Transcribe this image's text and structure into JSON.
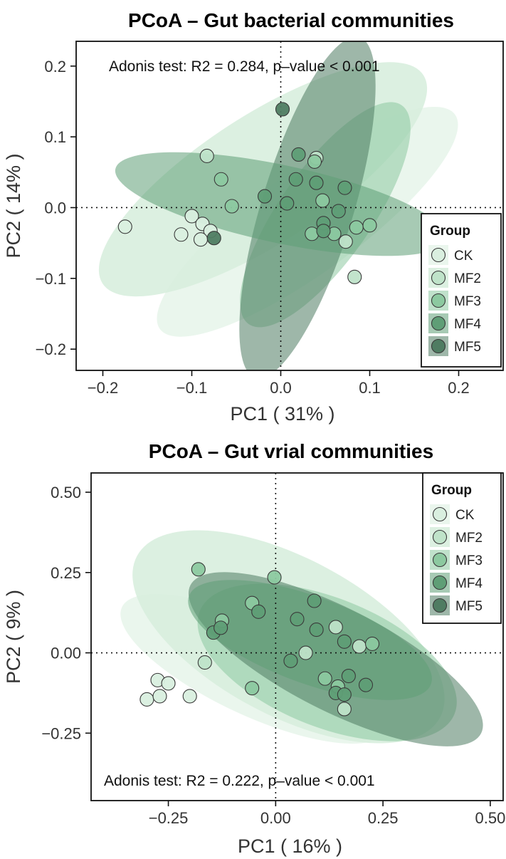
{
  "colors": {
    "CK": "#d9efdf",
    "MF2": "#bfe3c9",
    "MF3": "#8cc9a0",
    "MF4": "#5f9e76",
    "MF5": "#4f7c62",
    "point_stroke": "#3a3a3a"
  },
  "chart_data": [
    {
      "type": "scatter",
      "title": "PCoA – Gut bacterial communities",
      "xlabel": "PC1 ( 31% )",
      "ylabel": "PC2 ( 14% )",
      "xlim": [
        -0.23,
        0.25
      ],
      "ylim": [
        -0.23,
        0.235
      ],
      "xticks": [
        -0.2,
        -0.1,
        0.0,
        0.1,
        0.2
      ],
      "xtick_labels": [
        "−0.2",
        "−0.1",
        "0.0",
        "0.1",
        "0.2"
      ],
      "yticks": [
        0.2,
        0.1,
        0.0,
        -0.1,
        -0.2
      ],
      "ytick_labels": [
        "0.2",
        "0.1",
        "0.0",
        "−0.1",
        "−0.2"
      ],
      "annotation": "Adonis test: R2 = 0.284, p–value < 0.001",
      "annotation_position": "top",
      "legend_title": "Group",
      "legend_position": "bottom-right",
      "groups": [
        "CK",
        "MF2",
        "MF3",
        "MF4",
        "MF5"
      ],
      "ellipses": [
        {
          "group": "MF2",
          "cx": -0.02,
          "cy": 0.04,
          "rx": 0.215,
          "ry": 0.09,
          "angle_deg": 33
        },
        {
          "group": "CK",
          "cx": 0.03,
          "cy": -0.02,
          "rx": 0.205,
          "ry": 0.072,
          "angle_deg": 36
        },
        {
          "group": "MF3",
          "cx": 0.05,
          "cy": -0.01,
          "rx": 0.15,
          "ry": 0.065,
          "angle_deg": 55
        },
        {
          "group": "MF5",
          "cx": 0.03,
          "cy": 0.0,
          "rx": 0.2,
          "ry": 0.065,
          "angle_deg": 73
        },
        {
          "group": "MF4",
          "cx": 0.0,
          "cy": 0.005,
          "rx": 0.19,
          "ry": 0.055,
          "angle_deg": -12
        }
      ],
      "points": [
        {
          "group": "CK",
          "x": -0.175,
          "y": -0.027
        },
        {
          "group": "CK",
          "x": -0.1,
          "y": -0.012
        },
        {
          "group": "CK",
          "x": -0.088,
          "y": -0.023
        },
        {
          "group": "CK",
          "x": -0.079,
          "y": -0.033
        },
        {
          "group": "CK",
          "x": -0.112,
          "y": -0.038
        },
        {
          "group": "CK",
          "x": -0.09,
          "y": -0.045
        },
        {
          "group": "MF2",
          "x": -0.083,
          "y": 0.073
        },
        {
          "group": "MF2",
          "x": 0.083,
          "y": -0.098
        },
        {
          "group": "MF2",
          "x": 0.073,
          "y": -0.048
        },
        {
          "group": "MF2",
          "x": 0.04,
          "y": 0.07
        },
        {
          "group": "MF3",
          "x": -0.067,
          "y": 0.04
        },
        {
          "group": "MF3",
          "x": -0.055,
          "y": 0.002
        },
        {
          "group": "MF3",
          "x": 0.047,
          "y": 0.01
        },
        {
          "group": "MF3",
          "x": 0.085,
          "y": -0.028
        },
        {
          "group": "MF3",
          "x": 0.1,
          "y": -0.025
        },
        {
          "group": "MF3",
          "x": 0.035,
          "y": -0.037
        },
        {
          "group": "MF3",
          "x": 0.06,
          "y": -0.037
        },
        {
          "group": "MF3",
          "x": 0.038,
          "y": 0.065
        },
        {
          "group": "MF4",
          "x": 0.02,
          "y": 0.075
        },
        {
          "group": "MF4",
          "x": 0.017,
          "y": 0.04
        },
        {
          "group": "MF4",
          "x": 0.04,
          "y": 0.035
        },
        {
          "group": "MF4",
          "x": 0.072,
          "y": 0.028
        },
        {
          "group": "MF4",
          "x": -0.018,
          "y": 0.016
        },
        {
          "group": "MF4",
          "x": 0.007,
          "y": 0.006
        },
        {
          "group": "MF4",
          "x": 0.065,
          "y": -0.005
        },
        {
          "group": "MF4",
          "x": 0.048,
          "y": -0.022
        },
        {
          "group": "MF4",
          "x": 0.048,
          "y": -0.033
        },
        {
          "group": "MF5",
          "x": 0.002,
          "y": 0.139
        },
        {
          "group": "MF5",
          "x": -0.075,
          "y": -0.043
        }
      ]
    },
    {
      "type": "scatter",
      "title": "PCoA – Gut vrial communities",
      "xlabel": "PC1 ( 16% )",
      "ylabel": "PC2 ( 9% )",
      "xlim": [
        -0.43,
        0.53
      ],
      "ylim": [
        -0.46,
        0.56
      ],
      "xticks": [
        -0.25,
        0.0,
        0.25,
        0.5
      ],
      "xtick_labels": [
        "−0.25",
        "0.00",
        "0.25",
        "0.50"
      ],
      "yticks": [
        0.5,
        0.25,
        0.0,
        -0.25
      ],
      "ytick_labels": [
        "0.50",
        "0.25",
        "0.00",
        "−0.25"
      ],
      "annotation": "Adonis test: R2 = 0.222, p–value < 0.001",
      "annotation_position": "bottom",
      "legend_title": "Group",
      "legend_position": "top-right",
      "groups": [
        "CK",
        "MF2",
        "MF3",
        "MF4",
        "MF5"
      ],
      "ellipses": [
        {
          "group": "MF2",
          "cx": 0.03,
          "cy": 0.05,
          "rx": 0.4,
          "ry": 0.245,
          "angle_deg": -28
        },
        {
          "group": "CK",
          "cx": -0.05,
          "cy": -0.05,
          "rx": 0.34,
          "ry": 0.145,
          "angle_deg": -25
        },
        {
          "group": "MF3",
          "cx": 0.12,
          "cy": -0.03,
          "rx": 0.32,
          "ry": 0.2,
          "angle_deg": -22
        },
        {
          "group": "MF5",
          "cx": 0.14,
          "cy": -0.02,
          "rx": 0.38,
          "ry": 0.16,
          "angle_deg": -27
        },
        {
          "group": "MF4",
          "cx": 0.08,
          "cy": 0.04,
          "rx": 0.3,
          "ry": 0.135,
          "angle_deg": -20
        }
      ],
      "points": [
        {
          "group": "CK",
          "x": -0.275,
          "y": -0.085
        },
        {
          "group": "CK",
          "x": -0.25,
          "y": -0.095
        },
        {
          "group": "CK",
          "x": -0.3,
          "y": -0.145
        },
        {
          "group": "CK",
          "x": -0.27,
          "y": -0.135
        },
        {
          "group": "CK",
          "x": -0.2,
          "y": -0.135
        },
        {
          "group": "MF2",
          "x": -0.165,
          "y": -0.03
        },
        {
          "group": "MF2",
          "x": 0.07,
          "y": 0.0
        },
        {
          "group": "MF2",
          "x": 0.16,
          "y": -0.175
        },
        {
          "group": "MF2",
          "x": 0.14,
          "y": 0.08
        },
        {
          "group": "MF2",
          "x": 0.195,
          "y": 0.02
        },
        {
          "group": "MF3",
          "x": -0.18,
          "y": 0.26
        },
        {
          "group": "MF3",
          "x": -0.003,
          "y": 0.235
        },
        {
          "group": "MF3",
          "x": -0.055,
          "y": 0.155
        },
        {
          "group": "MF3",
          "x": -0.125,
          "y": 0.1
        },
        {
          "group": "MF3",
          "x": -0.055,
          "y": -0.11
        },
        {
          "group": "MF3",
          "x": 0.115,
          "y": -0.08
        },
        {
          "group": "MF3",
          "x": 0.145,
          "y": -0.105
        },
        {
          "group": "MF3",
          "x": 0.225,
          "y": 0.028
        },
        {
          "group": "MF4",
          "x": -0.145,
          "y": 0.063
        },
        {
          "group": "MF4",
          "x": -0.128,
          "y": 0.078
        },
        {
          "group": "MF4",
          "x": -0.04,
          "y": 0.128
        },
        {
          "group": "MF4",
          "x": 0.05,
          "y": 0.105
        },
        {
          "group": "MF4",
          "x": 0.09,
          "y": 0.162
        },
        {
          "group": "MF4",
          "x": 0.095,
          "y": 0.072
        },
        {
          "group": "MF4",
          "x": 0.16,
          "y": 0.035
        },
        {
          "group": "MF4",
          "x": 0.035,
          "y": -0.025
        },
        {
          "group": "MF4",
          "x": 0.17,
          "y": -0.072
        },
        {
          "group": "MF4",
          "x": 0.21,
          "y": -0.1
        },
        {
          "group": "MF4",
          "x": 0.14,
          "y": -0.125
        },
        {
          "group": "MF4",
          "x": 0.16,
          "y": -0.13
        }
      ]
    }
  ]
}
